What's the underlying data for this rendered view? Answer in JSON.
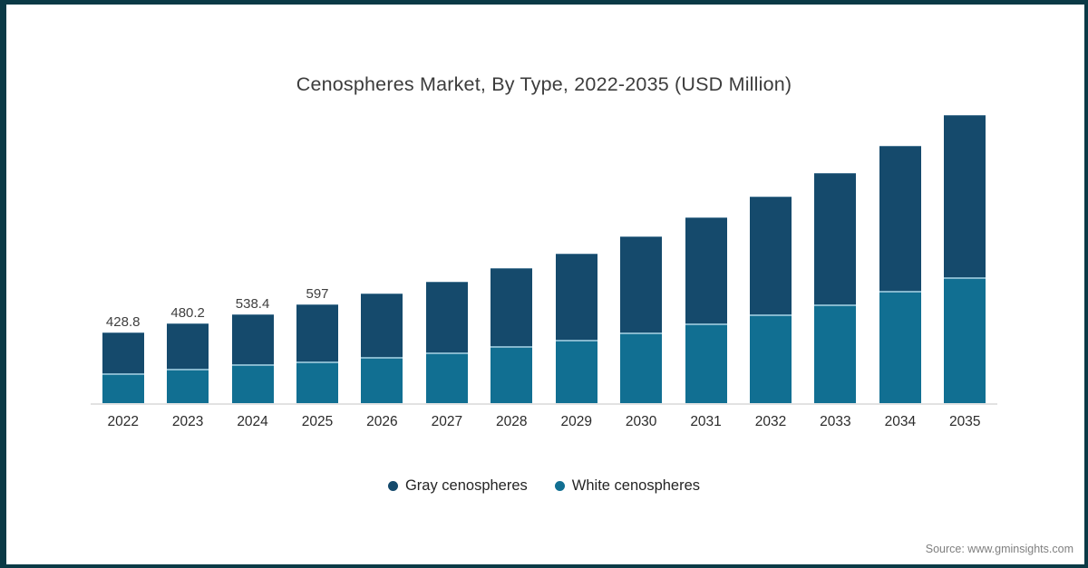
{
  "page": {
    "frame_color": "#0b3a46",
    "background": "#ffffff"
  },
  "chart_data": {
    "type": "bar",
    "stacked": true,
    "title": "Cenospheres Market, By Type, 2022-2035 (USD Million)",
    "categories": [
      "2022",
      "2023",
      "2024",
      "2025",
      "2026",
      "2027",
      "2028",
      "2029",
      "2030",
      "2031",
      "2032",
      "2033",
      "2034",
      "2035"
    ],
    "series": [
      {
        "name": "Gray cenospheres",
        "color": "#154a6c",
        "stack_position": "top",
        "values": [
          247.8,
          272.2,
          303.4,
          345,
          381,
          428,
          470,
          522,
          578,
          638,
          713,
          793,
          876,
          979
        ]
      },
      {
        "name": "White cenospheres",
        "color": "#116f92",
        "stack_position": "bottom",
        "values": [
          181,
          208,
          235,
          252,
          279,
          307,
          345,
          383,
          427,
          482,
          537,
          597,
          679,
          761
        ]
      }
    ],
    "totals": [
      428.8,
      480.2,
      538.4,
      597,
      660,
      735,
      815,
      905,
      1005,
      1120,
      1250,
      1390,
      1555,
      1740
    ],
    "total_labels": [
      "428.8",
      "480.2",
      "538.4",
      "597",
      "",
      "",
      "",
      "",
      "",
      "",
      "",
      "",
      "",
      ""
    ],
    "xlabel": "",
    "ylabel": "",
    "ylim": [
      0,
      1800
    ],
    "grid": false,
    "y_axis_visible": false,
    "legend_position": "bottom",
    "axis_line_color": "#e2e2e2",
    "separator_line_color": "#85b7cd"
  },
  "footer": {
    "source": "Source: www.gminsights.com"
  }
}
